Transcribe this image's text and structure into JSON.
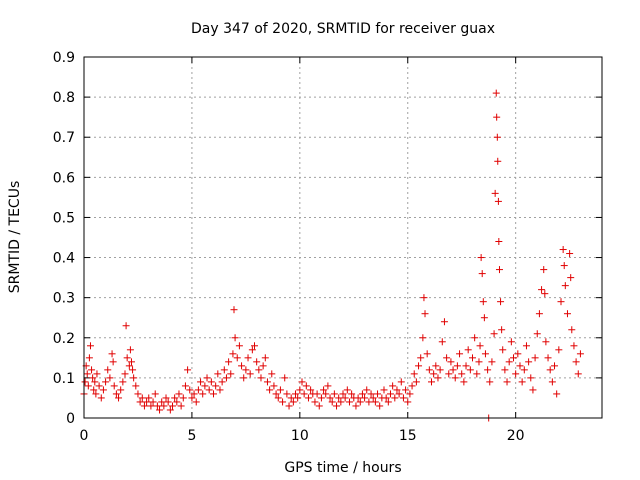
{
  "chart_data": {
    "type": "scatter",
    "title": "Day 347 of 2020, SRMTID for receiver guax",
    "xlabel": "GPS time / hours",
    "ylabel": "SRMTID / TECUs",
    "xlim": [
      0,
      24
    ],
    "ylim": [
      0,
      0.9
    ],
    "x_ticks": [
      "0",
      "5",
      "10",
      "15",
      "20"
    ],
    "y_ticks": [
      "0",
      "0.1",
      "0.2",
      "0.3",
      "0.4",
      "0.5",
      "0.6",
      "0.7",
      "0.8",
      "0.9"
    ],
    "grid": true,
    "marker": "+",
    "color": "#e00000",
    "series": [
      {
        "name": "guax",
        "points": [
          [
            0.0,
            0.06
          ],
          [
            0.05,
            0.09
          ],
          [
            0.1,
            0.13
          ],
          [
            0.15,
            0.11
          ],
          [
            0.2,
            0.08
          ],
          [
            0.25,
            0.15
          ],
          [
            0.3,
            0.18
          ],
          [
            0.35,
            0.12
          ],
          [
            0.4,
            0.1
          ],
          [
            0.45,
            0.07
          ],
          [
            0.5,
            0.09
          ],
          [
            0.55,
            0.06
          ],
          [
            0.6,
            0.11
          ],
          [
            0.7,
            0.08
          ],
          [
            0.8,
            0.05
          ],
          [
            0.9,
            0.07
          ],
          [
            1.0,
            0.09
          ],
          [
            1.1,
            0.12
          ],
          [
            1.2,
            0.1
          ],
          [
            1.3,
            0.16
          ],
          [
            1.35,
            0.14
          ],
          [
            1.4,
            0.08
          ],
          [
            1.5,
            0.06
          ],
          [
            1.6,
            0.05
          ],
          [
            1.7,
            0.07
          ],
          [
            1.8,
            0.09
          ],
          [
            1.9,
            0.11
          ],
          [
            1.95,
            0.23
          ],
          [
            2.0,
            0.15
          ],
          [
            2.1,
            0.13
          ],
          [
            2.15,
            0.17
          ],
          [
            2.2,
            0.14
          ],
          [
            2.25,
            0.12
          ],
          [
            2.3,
            0.1
          ],
          [
            2.4,
            0.08
          ],
          [
            2.5,
            0.06
          ],
          [
            2.6,
            0.04
          ],
          [
            2.7,
            0.05
          ],
          [
            2.8,
            0.03
          ],
          [
            2.9,
            0.04
          ],
          [
            3.0,
            0.05
          ],
          [
            3.1,
            0.03
          ],
          [
            3.2,
            0.04
          ],
          [
            3.3,
            0.06
          ],
          [
            3.4,
            0.03
          ],
          [
            3.5,
            0.02
          ],
          [
            3.6,
            0.04
          ],
          [
            3.7,
            0.03
          ],
          [
            3.8,
            0.05
          ],
          [
            3.9,
            0.04
          ],
          [
            4.0,
            0.02
          ],
          [
            4.1,
            0.03
          ],
          [
            4.2,
            0.05
          ],
          [
            4.3,
            0.04
          ],
          [
            4.4,
            0.06
          ],
          [
            4.5,
            0.03
          ],
          [
            4.6,
            0.05
          ],
          [
            4.7,
            0.08
          ],
          [
            4.8,
            0.12
          ],
          [
            4.9,
            0.07
          ],
          [
            5.0,
            0.05
          ],
          [
            5.1,
            0.06
          ],
          [
            5.2,
            0.04
          ],
          [
            5.3,
            0.07
          ],
          [
            5.4,
            0.09
          ],
          [
            5.5,
            0.06
          ],
          [
            5.6,
            0.08
          ],
          [
            5.7,
            0.1
          ],
          [
            5.8,
            0.07
          ],
          [
            5.9,
            0.09
          ],
          [
            6.0,
            0.06
          ],
          [
            6.1,
            0.08
          ],
          [
            6.2,
            0.11
          ],
          [
            6.3,
            0.07
          ],
          [
            6.4,
            0.09
          ],
          [
            6.5,
            0.12
          ],
          [
            6.6,
            0.1
          ],
          [
            6.7,
            0.14
          ],
          [
            6.8,
            0.11
          ],
          [
            6.9,
            0.16
          ],
          [
            6.95,
            0.27
          ],
          [
            7.0,
            0.2
          ],
          [
            7.1,
            0.15
          ],
          [
            7.2,
            0.18
          ],
          [
            7.3,
            0.13
          ],
          [
            7.4,
            0.1
          ],
          [
            7.5,
            0.12
          ],
          [
            7.6,
            0.15
          ],
          [
            7.7,
            0.11
          ],
          [
            7.8,
            0.17
          ],
          [
            7.9,
            0.18
          ],
          [
            8.0,
            0.14
          ],
          [
            8.1,
            0.12
          ],
          [
            8.2,
            0.1
          ],
          [
            8.3,
            0.13
          ],
          [
            8.4,
            0.15
          ],
          [
            8.5,
            0.09
          ],
          [
            8.6,
            0.07
          ],
          [
            8.7,
            0.11
          ],
          [
            8.8,
            0.08
          ],
          [
            8.9,
            0.06
          ],
          [
            9.0,
            0.05
          ],
          [
            9.1,
            0.07
          ],
          [
            9.2,
            0.04
          ],
          [
            9.3,
            0.1
          ],
          [
            9.4,
            0.06
          ],
          [
            9.5,
            0.03
          ],
          [
            9.6,
            0.05
          ],
          [
            9.7,
            0.04
          ],
          [
            9.8,
            0.06
          ],
          [
            9.9,
            0.05
          ],
          [
            10.0,
            0.07
          ],
          [
            10.1,
            0.09
          ],
          [
            10.2,
            0.06
          ],
          [
            10.3,
            0.08
          ],
          [
            10.4,
            0.05
          ],
          [
            10.5,
            0.07
          ],
          [
            10.6,
            0.06
          ],
          [
            10.7,
            0.04
          ],
          [
            10.8,
            0.06
          ],
          [
            10.9,
            0.03
          ],
          [
            11.0,
            0.05
          ],
          [
            11.1,
            0.07
          ],
          [
            11.2,
            0.06
          ],
          [
            11.3,
            0.08
          ],
          [
            11.4,
            0.05
          ],
          [
            11.5,
            0.04
          ],
          [
            11.6,
            0.06
          ],
          [
            11.7,
            0.03
          ],
          [
            11.8,
            0.05
          ],
          [
            11.9,
            0.04
          ],
          [
            12.0,
            0.06
          ],
          [
            12.1,
            0.05
          ],
          [
            12.2,
            0.07
          ],
          [
            12.3,
            0.04
          ],
          [
            12.4,
            0.06
          ],
          [
            12.5,
            0.05
          ],
          [
            12.6,
            0.03
          ],
          [
            12.7,
            0.05
          ],
          [
            12.8,
            0.04
          ],
          [
            12.9,
            0.06
          ],
          [
            13.0,
            0.05
          ],
          [
            13.1,
            0.07
          ],
          [
            13.2,
            0.04
          ],
          [
            13.3,
            0.06
          ],
          [
            13.4,
            0.05
          ],
          [
            13.5,
            0.04
          ],
          [
            13.6,
            0.06
          ],
          [
            13.7,
            0.03
          ],
          [
            13.8,
            0.05
          ],
          [
            13.9,
            0.07
          ],
          [
            14.0,
            0.05
          ],
          [
            14.1,
            0.04
          ],
          [
            14.2,
            0.06
          ],
          [
            14.3,
            0.08
          ],
          [
            14.4,
            0.05
          ],
          [
            14.5,
            0.07
          ],
          [
            14.6,
            0.06
          ],
          [
            14.7,
            0.09
          ],
          [
            14.8,
            0.05
          ],
          [
            14.9,
            0.07
          ],
          [
            15.0,
            0.04
          ],
          [
            15.1,
            0.06
          ],
          [
            15.2,
            0.08
          ],
          [
            15.3,
            0.11
          ],
          [
            15.4,
            0.09
          ],
          [
            15.5,
            0.13
          ],
          [
            15.6,
            0.15
          ],
          [
            15.7,
            0.2
          ],
          [
            15.75,
            0.3
          ],
          [
            15.8,
            0.26
          ],
          [
            15.9,
            0.16
          ],
          [
            16.0,
            0.12
          ],
          [
            16.1,
            0.09
          ],
          [
            16.2,
            0.11
          ],
          [
            16.3,
            0.13
          ],
          [
            16.4,
            0.1
          ],
          [
            16.5,
            0.12
          ],
          [
            16.6,
            0.19
          ],
          [
            16.7,
            0.24
          ],
          [
            16.8,
            0.15
          ],
          [
            16.9,
            0.11
          ],
          [
            17.0,
            0.14
          ],
          [
            17.1,
            0.12
          ],
          [
            17.2,
            0.1
          ],
          [
            17.3,
            0.13
          ],
          [
            17.4,
            0.16
          ],
          [
            17.5,
            0.11
          ],
          [
            17.6,
            0.09
          ],
          [
            17.7,
            0.13
          ],
          [
            17.8,
            0.17
          ],
          [
            17.9,
            0.12
          ],
          [
            18.0,
            0.15
          ],
          [
            18.1,
            0.2
          ],
          [
            18.2,
            0.11
          ],
          [
            18.3,
            0.14
          ],
          [
            18.35,
            0.18
          ],
          [
            18.4,
            0.4
          ],
          [
            18.45,
            0.36
          ],
          [
            18.5,
            0.29
          ],
          [
            18.55,
            0.25
          ],
          [
            18.6,
            0.16
          ],
          [
            18.7,
            0.12
          ],
          [
            18.75,
            0.0
          ],
          [
            18.8,
            0.09
          ],
          [
            18.9,
            0.14
          ],
          [
            19.0,
            0.21
          ],
          [
            19.05,
            0.56
          ],
          [
            19.1,
            0.81
          ],
          [
            19.12,
            0.75
          ],
          [
            19.15,
            0.7
          ],
          [
            19.17,
            0.64
          ],
          [
            19.2,
            0.54
          ],
          [
            19.22,
            0.44
          ],
          [
            19.25,
            0.37
          ],
          [
            19.3,
            0.29
          ],
          [
            19.35,
            0.22
          ],
          [
            19.4,
            0.17
          ],
          [
            19.5,
            0.12
          ],
          [
            19.6,
            0.09
          ],
          [
            19.7,
            0.14
          ],
          [
            19.8,
            0.19
          ],
          [
            19.9,
            0.15
          ],
          [
            20.0,
            0.11
          ],
          [
            20.1,
            0.16
          ],
          [
            20.2,
            0.13
          ],
          [
            20.3,
            0.09
          ],
          [
            20.4,
            0.12
          ],
          [
            20.5,
            0.18
          ],
          [
            20.6,
            0.14
          ],
          [
            20.7,
            0.1
          ],
          [
            20.8,
            0.07
          ],
          [
            20.9,
            0.15
          ],
          [
            21.0,
            0.21
          ],
          [
            21.1,
            0.26
          ],
          [
            21.2,
            0.32
          ],
          [
            21.3,
            0.37
          ],
          [
            21.35,
            0.31
          ],
          [
            21.4,
            0.19
          ],
          [
            21.5,
            0.15
          ],
          [
            21.6,
            0.12
          ],
          [
            21.7,
            0.09
          ],
          [
            21.8,
            0.13
          ],
          [
            21.9,
            0.06
          ],
          [
            22.0,
            0.17
          ],
          [
            22.1,
            0.29
          ],
          [
            22.2,
            0.42
          ],
          [
            22.25,
            0.38
          ],
          [
            22.3,
            0.33
          ],
          [
            22.4,
            0.26
          ],
          [
            22.5,
            0.41
          ],
          [
            22.55,
            0.35
          ],
          [
            22.6,
            0.22
          ],
          [
            22.7,
            0.18
          ],
          [
            22.8,
            0.14
          ],
          [
            22.9,
            0.11
          ],
          [
            23.0,
            0.16
          ]
        ]
      }
    ]
  }
}
